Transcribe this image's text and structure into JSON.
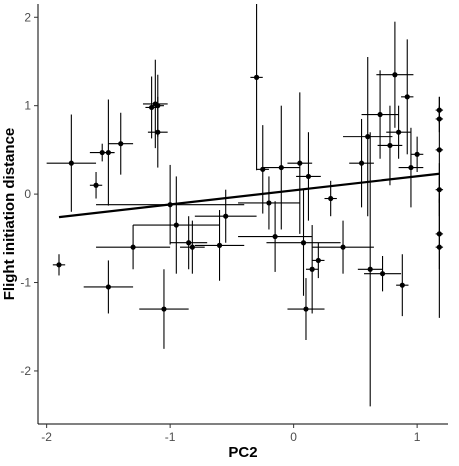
{
  "chart_data": {
    "type": "scatter",
    "title": "",
    "xlabel": "PC2",
    "ylabel": "Flight initiation distance",
    "xlim": [
      -2.07,
      1.25
    ],
    "ylim": [
      -2.6,
      2.15
    ],
    "xticks": [
      -2,
      -1,
      0,
      1
    ],
    "yticks": [
      -2,
      -1,
      0,
      1,
      2
    ],
    "grid": false,
    "legend": "none",
    "colors": {
      "points": "#000000",
      "axis": "#000000",
      "tick_text": "#4d4d4d",
      "background": "#ffffff"
    },
    "trend_line": {
      "x": [
        -1.9,
        1.18
      ],
      "y": [
        -0.26,
        0.23
      ]
    },
    "points": [
      {
        "x": -1.9,
        "y": -0.8,
        "xerr": 0.05,
        "yerr": 0.12
      },
      {
        "x": -1.8,
        "y": 0.35,
        "xerr": 0.2,
        "yerr": 0.55
      },
      {
        "x": -1.6,
        "y": 0.1,
        "xerr": 0.05,
        "yerr": 0.15
      },
      {
        "x": -1.55,
        "y": 0.47,
        "xerr": 0.1,
        "yerr": 0.1
      },
      {
        "x": -1.5,
        "y": 0.47,
        "xerr": 0.05,
        "yerr": 0.6
      },
      {
        "x": -1.5,
        "y": -1.05,
        "xerr": 0.2,
        "yerr": 0.3
      },
      {
        "x": -1.4,
        "y": 0.57,
        "xerr": 0.1,
        "yerr": 0.35
      },
      {
        "x": -1.3,
        "y": -0.6,
        "xerr": 0.3,
        "yerr": 0.25
      },
      {
        "x": -1.15,
        "y": 0.98,
        "xerr": 0.05,
        "yerr": 0.35
      },
      {
        "x": -1.12,
        "y": 1.02,
        "xerr": 0.1,
        "yerr": 0.5
      },
      {
        "x": -1.1,
        "y": 1.0,
        "xerr": 0.05,
        "yerr": 0.35
      },
      {
        "x": -1.1,
        "y": 0.7,
        "xerr": 0.08,
        "yerr": 0.4
      },
      {
        "x": -1.05,
        "y": -1.3,
        "xerr": 0.2,
        "yerr": 0.45
      },
      {
        "x": -1.0,
        "y": -0.12,
        "xerr": 0.6,
        "yerr": 0.45
      },
      {
        "x": -0.95,
        "y": -0.35,
        "xerr": 0.35,
        "yerr": 0.55
      },
      {
        "x": -0.85,
        "y": -0.55,
        "xerr": 0.15,
        "yerr": 0.3
      },
      {
        "x": -0.82,
        "y": -0.6,
        "xerr": 0.1,
        "yerr": 0.3
      },
      {
        "x": -0.6,
        "y": -0.58,
        "xerr": 0.2,
        "yerr": 0.4
      },
      {
        "x": -0.55,
        "y": -0.25,
        "xerr": 0.25,
        "yerr": 0.3
      },
      {
        "x": -0.3,
        "y": 1.32,
        "xerr": 0.05,
        "yerr": 1.05
      },
      {
        "x": -0.25,
        "y": 0.28,
        "xerr": 0.05,
        "yerr": 0.5
      },
      {
        "x": -0.2,
        "y": -0.1,
        "xerr": 0.25,
        "yerr": 0.3
      },
      {
        "x": -0.15,
        "y": -0.48,
        "xerr": 0.3,
        "yerr": 0.4
      },
      {
        "x": -0.1,
        "y": 0.3,
        "xerr": 0.15,
        "yerr": 0.7
      },
      {
        "x": 0.05,
        "y": 0.35,
        "xerr": 0.1,
        "yerr": 0.8
      },
      {
        "x": 0.08,
        "y": -0.55,
        "xerr": 0.3,
        "yerr": 0.6
      },
      {
        "x": 0.1,
        "y": -1.3,
        "xerr": 0.15,
        "yerr": 0.35
      },
      {
        "x": 0.12,
        "y": 0.2,
        "xerr": 0.1,
        "yerr": 0.5
      },
      {
        "x": 0.15,
        "y": -0.85,
        "xerr": 0.05,
        "yerr": 0.5
      },
      {
        "x": 0.2,
        "y": -0.75,
        "xerr": 0.05,
        "yerr": 0.2
      },
      {
        "x": 0.3,
        "y": -0.05,
        "xerr": 0.05,
        "yerr": 0.2
      },
      {
        "x": 0.4,
        "y": -0.6,
        "xerr": 0.25,
        "yerr": 0.3
      },
      {
        "x": 0.55,
        "y": 0.35,
        "xerr": 0.1,
        "yerr": 0.5
      },
      {
        "x": 0.6,
        "y": 0.65,
        "xerr": 0.2,
        "yerr": 0.9
      },
      {
        "x": 0.62,
        "y": -0.85,
        "xerr": 0.1,
        "yerr": 1.55
      },
      {
        "x": 0.7,
        "y": 0.9,
        "xerr": 0.15,
        "yerr": 0.5
      },
      {
        "x": 0.72,
        "y": -0.9,
        "xerr": 0.15,
        "yerr": 0.2
      },
      {
        "x": 0.78,
        "y": 0.55,
        "xerr": 0.1,
        "yerr": 0.45
      },
      {
        "x": 0.82,
        "y": 1.35,
        "xerr": 0.15,
        "yerr": 0.6
      },
      {
        "x": 0.85,
        "y": 0.7,
        "xerr": 0.1,
        "yerr": 0.3
      },
      {
        "x": 0.88,
        "y": -1.03,
        "xerr": 0.05,
        "yerr": 0.35
      },
      {
        "x": 0.92,
        "y": 1.1,
        "xerr": 0.05,
        "yerr": 0.65
      },
      {
        "x": 0.95,
        "y": 0.3,
        "xerr": 0.1,
        "yerr": 0.45
      },
      {
        "x": 1.0,
        "y": 0.45,
        "xerr": 0.05,
        "yerr": 0.2
      },
      {
        "x": 1.18,
        "y": 0.95,
        "xerr": 0.03,
        "yerr": 0.15
      },
      {
        "x": 1.18,
        "y": 0.85,
        "xerr": 0.03,
        "yerr": 0.15
      },
      {
        "x": 1.18,
        "y": 0.5,
        "xerr": 0.03,
        "yerr": 0.6
      },
      {
        "x": 1.18,
        "y": -0.45,
        "xerr": 0.03,
        "yerr": 0.4
      },
      {
        "x": 1.18,
        "y": -0.6,
        "xerr": 0.03,
        "yerr": 0.8
      },
      {
        "x": 1.18,
        "y": 0.05,
        "xerr": 0.03,
        "yerr": 0.3
      }
    ]
  }
}
